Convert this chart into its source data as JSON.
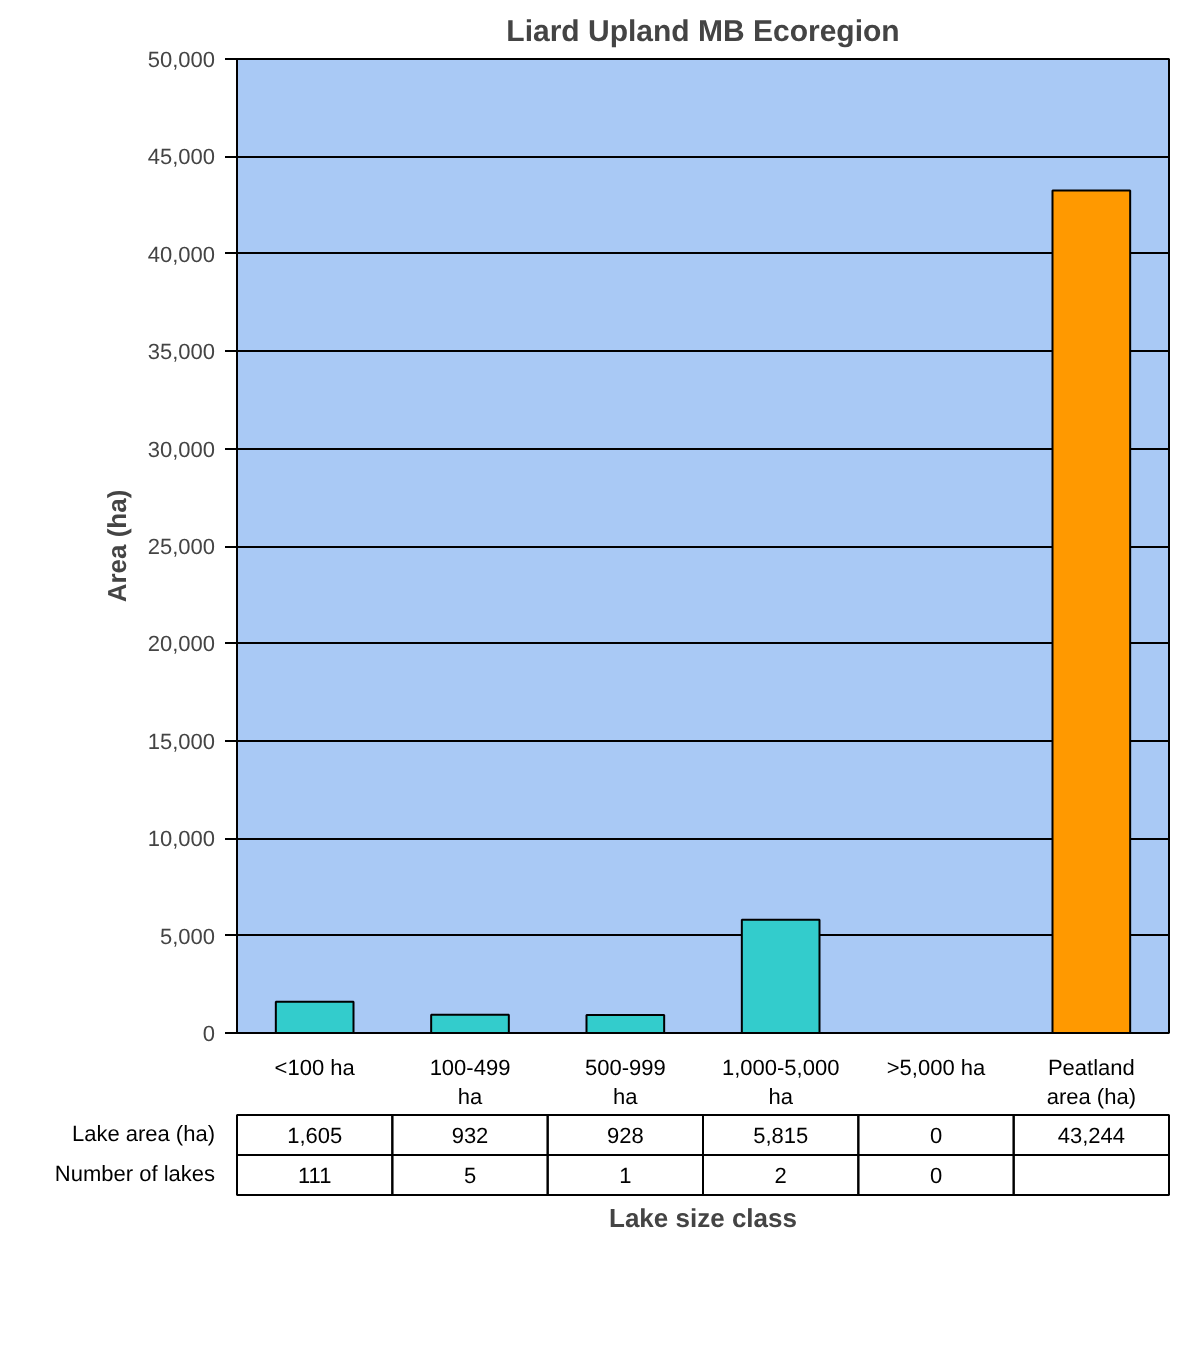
{
  "chart_data": {
    "type": "bar",
    "title": "Liard Upland MB Ecoregion",
    "xlabel": "Lake size class",
    "ylabel": "Area (ha)",
    "categories": [
      "<100 ha",
      "100-499 ha",
      "500-999 ha",
      "1,000-5,000 ha",
      ">5,000 ha",
      "Peatland area (ha)"
    ],
    "series": [
      {
        "name": "Lake area (ha)",
        "values": [
          1605,
          932,
          928,
          5815,
          0,
          43244
        ]
      }
    ],
    "value_labels": [
      "1,605",
      "932",
      "928",
      "5,815",
      "0",
      "43,244"
    ],
    "colors": [
      "#33cccc",
      "#33cccc",
      "#33cccc",
      "#33cccc",
      "#33cccc",
      "#ff9900"
    ],
    "ylim": [
      0,
      50000
    ],
    "yticks": [
      {
        "value": 0,
        "label": "0"
      },
      {
        "value": 5000,
        "label": "5,000"
      },
      {
        "value": 10000,
        "label": "10,000"
      },
      {
        "value": 15000,
        "label": "15,000"
      },
      {
        "value": 20000,
        "label": "20,000"
      },
      {
        "value": 25000,
        "label": "25,000"
      },
      {
        "value": 30000,
        "label": "30,000"
      },
      {
        "value": 35000,
        "label": "35,000"
      },
      {
        "value": 40000,
        "label": "40,000"
      },
      {
        "value": 45000,
        "label": "45,000"
      },
      {
        "value": 50000,
        "label": "50,000"
      }
    ],
    "grid": "y",
    "annotations": [
      "Number of lakes",
      "111",
      "5",
      "1",
      "2",
      "0"
    ]
  }
}
